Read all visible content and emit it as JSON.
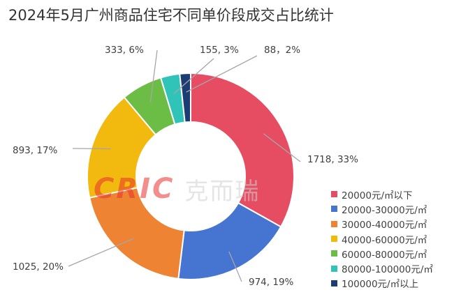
{
  "title": "2024年5月广州商品住宅不同单价段成交占比统计",
  "watermark": {
    "en": "CRIC",
    "cn": "克而瑞"
  },
  "chart_data": {
    "type": "pie",
    "donut": true,
    "title": "2024年5月广州商品住宅不同单价段成交占比统计",
    "legend": "right",
    "categories": [
      "20000元/㎡以下",
      "20000-30000元/㎡",
      "30000-40000元/㎡",
      "40000-60000元/㎡",
      "60000-80000元/㎡",
      "80000-100000元/㎡",
      "100000元/㎡以上"
    ],
    "values": [
      1718,
      974,
      1025,
      893,
      333,
      155,
      88
    ],
    "percents": [
      33,
      19,
      20,
      17,
      6,
      3,
      2
    ],
    "data_labels": [
      "1718, 33%",
      "974, 19%",
      "1025, 20%",
      "893, 17%",
      "333, 6%",
      "155, 3%",
      "88，2%"
    ],
    "colors": [
      "#e64d63",
      "#4674d1",
      "#ee8433",
      "#f2b90f",
      "#6cbd45",
      "#30c4b8",
      "#1c3c74"
    ]
  }
}
